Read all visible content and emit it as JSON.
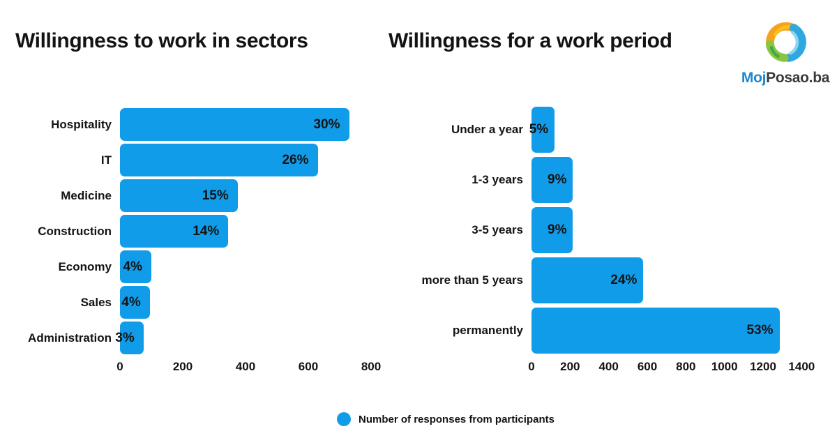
{
  "page": {
    "background": "#ffffff"
  },
  "header": {
    "left_title": "Willingness to work in sectors",
    "right_title": "Willingness for a work period"
  },
  "logo": {
    "moj": "Moj",
    "posao": "Posao.ba",
    "moj_color": "#1d87cc",
    "posao_color": "#3a3a3a",
    "swirl_orange": "#f6a21d",
    "swirl_yellow": "#fcc21b",
    "swirl_blue": "#2fa8df",
    "swirl_lightblue": "#8fd4f2",
    "swirl_green": "#8bc540",
    "swirl_darkgreen": "#3faa49"
  },
  "colors": {
    "bar": "#119ce9",
    "text": "#131313"
  },
  "legend": {
    "label": "Number of responses from participants"
  },
  "chart_data": [
    {
      "type": "bar",
      "orientation": "horizontal",
      "title": "Willingness to work in sectors",
      "categories": [
        "Hospitality",
        "IT",
        "Medicine",
        "Construction",
        "Economy",
        "Sales",
        "Administration"
      ],
      "values": [
        730,
        630,
        375,
        345,
        100,
        95,
        75
      ],
      "percent_labels": [
        "30%",
        "26%",
        "15%",
        "14%",
        "4%",
        "4%",
        "3%"
      ],
      "series_name": "Number of responses from participants",
      "x_ticks": [
        0,
        200,
        400,
        600,
        800
      ],
      "xlim": [
        0,
        900
      ],
      "xlabel": "",
      "ylabel": "",
      "grid": false,
      "legend_position": "bottom"
    },
    {
      "type": "bar",
      "orientation": "horizontal",
      "title": "Willingness for a work period",
      "categories": [
        "Under a year",
        "1-3 years",
        "3-5 years",
        "more than 5 years",
        "permanently"
      ],
      "values": [
        120,
        215,
        215,
        580,
        1285
      ],
      "percent_labels": [
        "5%",
        "9%",
        "9%",
        "24%",
        "53%"
      ],
      "series_name": "Number of responses from participants",
      "x_ticks": [
        0,
        200,
        400,
        600,
        800,
        1000,
        1200,
        1400
      ],
      "xlim": [
        0,
        1500
      ],
      "xlabel": "",
      "ylabel": "",
      "grid": false,
      "legend_position": "bottom"
    }
  ]
}
